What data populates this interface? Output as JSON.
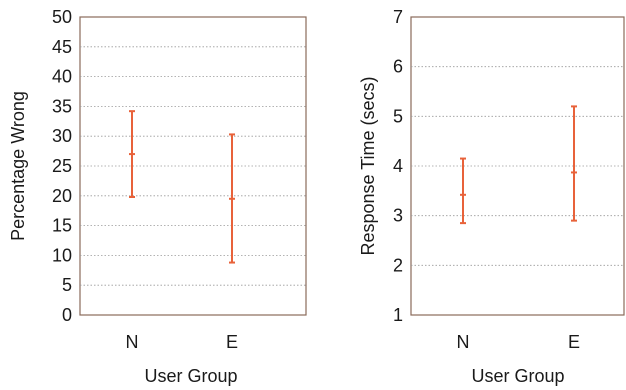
{
  "chart_data": [
    {
      "type": "errorbar",
      "title": "",
      "xlabel": "User Group",
      "ylabel": "Percentage Wrong",
      "categories": [
        "N",
        "E"
      ],
      "ylim": [
        0,
        50
      ],
      "yticks": [
        "0",
        "5",
        "10",
        "15",
        "20",
        "25",
        "30",
        "35",
        "40",
        "45",
        "50"
      ],
      "grid": true,
      "series": [
        {
          "mean": [
            27,
            19.5
          ],
          "low": [
            19.8,
            8.8
          ],
          "high": [
            34.2,
            30.3
          ]
        }
      ],
      "color": "#e8623a"
    },
    {
      "type": "errorbar",
      "title": "",
      "xlabel": "User Group",
      "ylabel": "Response Time (secs)",
      "categories": [
        "N",
        "E"
      ],
      "ylim": [
        1,
        7
      ],
      "yticks": [
        "1",
        "2",
        "3",
        "4",
        "5",
        "6",
        "7"
      ],
      "grid": true,
      "series": [
        {
          "mean": [
            3.42,
            3.87
          ],
          "low": [
            2.85,
            2.9
          ],
          "high": [
            4.15,
            5.2
          ]
        }
      ],
      "color": "#e8623a"
    }
  ]
}
